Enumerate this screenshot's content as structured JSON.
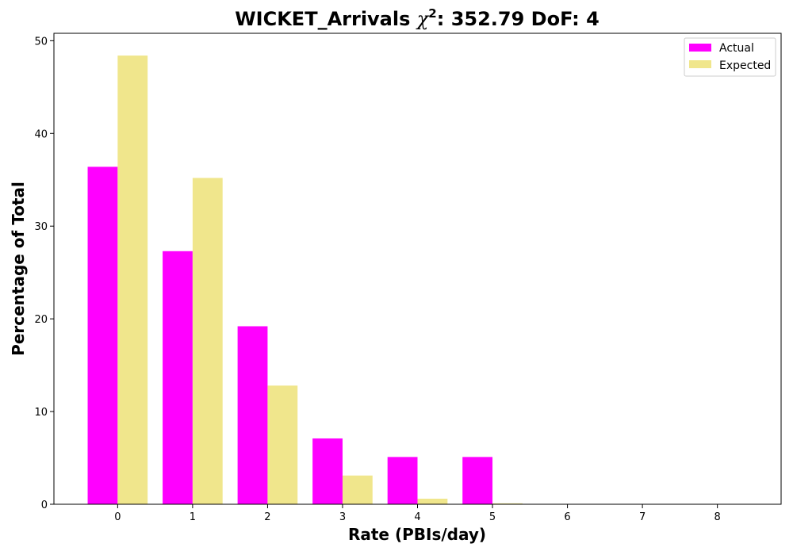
{
  "chart_data": {
    "type": "bar",
    "title_main": "WICKET_Arrivals ",
    "title_chi": "χ",
    "title_sup": "2",
    "title_rest": ": 352.79 DoF: 4",
    "xlabel": "Rate (PBIs/day)",
    "ylabel": "Percentage of Total",
    "categories": [
      "0",
      "1",
      "2",
      "3",
      "4",
      "5",
      "6",
      "7",
      "8"
    ],
    "x": [
      0,
      1,
      2,
      3,
      4,
      5,
      6,
      7,
      8
    ],
    "xlim": [
      -0.85,
      8.85
    ],
    "ylim": [
      0,
      50.8
    ],
    "yticks": [
      0,
      10,
      20,
      30,
      40,
      50
    ],
    "legend_position": "top-right",
    "series": [
      {
        "name": "Actual",
        "color": "#ff00ff",
        "values": [
          36.4,
          27.3,
          19.2,
          7.1,
          5.1,
          5.1,
          0,
          0,
          0
        ]
      },
      {
        "name": "Expected",
        "color": "#f0e68c",
        "values": [
          48.4,
          35.2,
          12.8,
          3.1,
          0.6,
          0.1,
          0,
          0,
          0
        ]
      }
    ]
  }
}
